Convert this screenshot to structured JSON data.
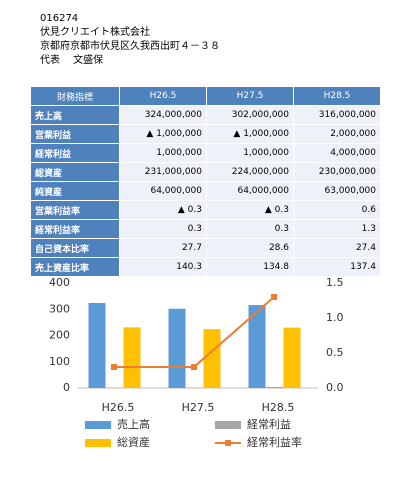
{
  "header": {
    "code": "016274",
    "company": "伏見クリエイト株式会社",
    "address": "京都府京都市伏見区久我西出町４－３８",
    "representative": "代表　 文盛保"
  },
  "table": {
    "columns": [
      "財務指標",
      "H26.5",
      "H27.5",
      "H28.5"
    ],
    "rows": [
      [
        "売上高",
        "324,000,000",
        "302,000,000",
        "316,000,000"
      ],
      [
        "営業利益",
        "▲ 1,000,000",
        "▲ 1,000,000",
        "2,000,000"
      ],
      [
        "経常利益",
        "1,000,000",
        "1,000,000",
        "4,000,000"
      ],
      [
        "総資産",
        "231,000,000",
        "224,000,000",
        "230,000,000"
      ],
      [
        "純資産",
        "64,000,000",
        "64,000,000",
        "63,000,000"
      ],
      [
        "営業利益率",
        "▲ 0.3",
        "▲ 0.3",
        "0.6"
      ],
      [
        "経常利益率",
        "0.3",
        "0.3",
        "1.3"
      ],
      [
        "自己資本比率",
        "27.7",
        "28.6",
        "27.4"
      ],
      [
        "売上資産比率",
        "140.3",
        "134.8",
        "137.4"
      ]
    ]
  },
  "chart_data": {
    "type": "bar",
    "categories": [
      "H26.5",
      "H27.5",
      "H28.5"
    ],
    "ylim": [
      0,
      400
    ],
    "yticks": [
      0,
      100,
      200,
      300,
      400
    ],
    "y2lim": [
      0,
      1.5
    ],
    "y2ticks": [
      {
        "value": 0,
        "label": "0.0"
      },
      0.5,
      {
        "value": 1,
        "label": "1.0"
      },
      1.5
    ],
    "series": [
      {
        "name": "売上高",
        "color": "#5b9bd5",
        "values": [
          324,
          302,
          316
        ]
      },
      {
        "name": "経常利益",
        "color": "#a5a5a5",
        "values": [
          1,
          1,
          4
        ]
      },
      {
        "name": "総資産",
        "color": "#ffc000",
        "values": [
          231,
          224,
          230
        ]
      },
      {
        "name": "経常利益率",
        "color": "#ed7d31",
        "type": "line",
        "axis": "y2",
        "values": [
          0.3,
          0.3,
          1.3
        ]
      }
    ]
  }
}
